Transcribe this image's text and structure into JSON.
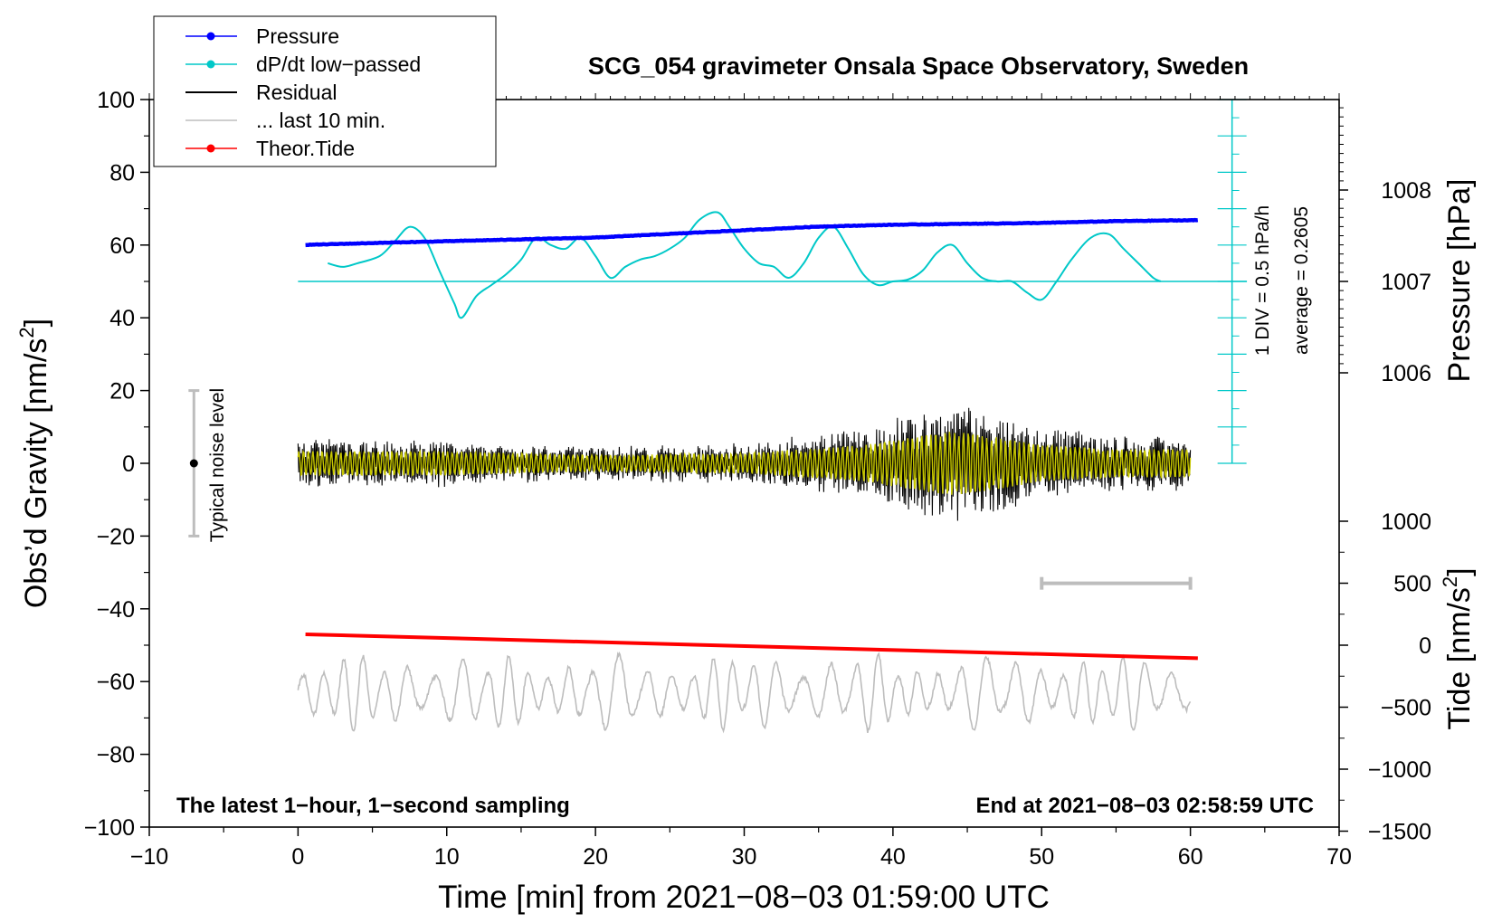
{
  "chart_data": {
    "type": "line",
    "title": "SCG_054 gravimeter Onsala Space Observatory, Sweden",
    "xlabel": "Time [min] from 2021−08−03 01:59:00 UTC",
    "ylabel_left": "Obs’d Gravity [nm/s",
    "ylabel_left_sup": "2",
    "ylabel_left_end": "]",
    "ylabel_pressure": "Pressure [hPa]",
    "ylabel_tide": "Tide [nm/s",
    "ylabel_tide_sup": "2",
    "ylabel_tide_end": "]",
    "xlim": [
      -10,
      70
    ],
    "ylim": [
      -100,
      100
    ],
    "x_ticks": [
      -10,
      0,
      10,
      20,
      30,
      40,
      50,
      60,
      70
    ],
    "x_tick_labels": [
      "−10",
      "0",
      "10",
      "20",
      "30",
      "40",
      "50",
      "60",
      "70"
    ],
    "y_ticks": [
      -100,
      -80,
      -60,
      -40,
      -20,
      0,
      20,
      40,
      60,
      80,
      100
    ],
    "y_tick_labels": [
      "−100",
      "−80",
      "−60",
      "−40",
      "−20",
      "0",
      "20",
      "40",
      "60",
      "80",
      "100"
    ],
    "pressure_ticks": [
      1006,
      1007,
      1008
    ],
    "pressure_tick_labels": [
      "1006",
      "1007",
      "1008"
    ],
    "tide_ticks": [
      -1500,
      -1000,
      -500,
      0,
      500,
      1000
    ],
    "tide_tick_labels": [
      "−1500",
      "−1000",
      "−500",
      "0",
      "500",
      "1000"
    ],
    "legend": [
      {
        "label": "Pressure",
        "color": "#0000ff",
        "marker": true
      },
      {
        "label": "dP/dt low−passed",
        "color": "#00c8c8",
        "marker": true
      },
      {
        "label": "Residual",
        "color": "#000000",
        "marker": false
      },
      {
        "label": "... last 10 min.",
        "color": "#bdbdbd",
        "marker": false
      },
      {
        "label": "Theor.Tide",
        "color": "#ff0000",
        "marker": true
      }
    ],
    "series": [
      {
        "name": "Pressure",
        "color": "#0000ff",
        "unit": "hPa",
        "x": [
          0.5,
          5,
          10,
          15,
          20,
          25,
          30,
          35,
          40,
          45,
          50,
          55,
          60.5
        ],
        "values": [
          1007.4,
          1007.42,
          1007.44,
          1007.46,
          1007.48,
          1007.52,
          1007.56,
          1007.6,
          1007.62,
          1007.63,
          1007.64,
          1007.66,
          1007.67
        ]
      },
      {
        "name": "dP/dt low-passed",
        "color": "#00c8c8",
        "unit": "gravity-axis units (1 DIV = 0.5 hPa/h)",
        "x": [
          2,
          3,
          4,
          5.5,
          6.5,
          7.5,
          8.5,
          9.5,
          10.5,
          11,
          12,
          13,
          14,
          15,
          16,
          17,
          18,
          19,
          20,
          21,
          22,
          23,
          24,
          25,
          26,
          27,
          28.2,
          29,
          30,
          31,
          32,
          33,
          34,
          35,
          36,
          37,
          38,
          39,
          40,
          41,
          42,
          43,
          44,
          45,
          46,
          47,
          48,
          49,
          50,
          51,
          52,
          53.3,
          54.5,
          55.5,
          56.5,
          57.5,
          58
        ],
        "values": [
          55,
          54,
          55,
          57,
          61,
          65,
          62,
          53,
          44,
          40,
          46,
          49,
          52,
          56,
          62,
          60,
          59,
          62,
          57,
          51,
          54,
          56,
          57,
          59,
          62,
          67,
          69,
          65,
          59,
          55,
          54,
          51,
          55,
          62,
          65,
          59,
          52,
          49,
          50,
          50.5,
          53,
          58,
          60,
          55,
          51,
          50,
          50,
          47,
          45,
          50,
          56,
          62,
          63,
          59,
          55,
          51,
          50
        ]
      },
      {
        "name": "dP/dt average",
        "color": "#00c8c8",
        "value": 50
      },
      {
        "name": "Residual",
        "color": "#000000",
        "note": "1-second sampling, amplitude envelope",
        "x": [
          0,
          10,
          20,
          30,
          38,
          42,
          44,
          47,
          50,
          55,
          60
        ],
        "amplitude": [
          6,
          6,
          4,
          5,
          9,
          14,
          16,
          13,
          9,
          7,
          7
        ]
      },
      {
        "name": "Residual low-passed",
        "color": "#c8c800"
      },
      {
        "name": "Theor.Tide",
        "color": "#ff0000",
        "unit": "nm/s2",
        "x": [
          0.5,
          60.5
        ],
        "values": [
          88,
          -105
        ]
      },
      {
        "name": "... last 10 min.",
        "color": "#bdbdbd",
        "note": "last 10 min residual, drawn vs 0..60 min",
        "x": [
          0,
          60
        ],
        "baseline": -63
      },
      {
        "name": "10-min scale bar",
        "color": "#bdbdbd",
        "x": [
          50,
          60
        ],
        "y": -33
      }
    ],
    "annotations": {
      "dp_scale": "1 DIV = 0.5 hPa/h",
      "dp_average": "average = 0.2605",
      "noise_label": "Typical noise level",
      "noise_range": [
        -20,
        20
      ],
      "noise_x": -7,
      "bottom_left": "The latest 1−hour, 1−second sampling",
      "bottom_right": "End at 2021−08−03 02:58:59 UTC"
    }
  }
}
